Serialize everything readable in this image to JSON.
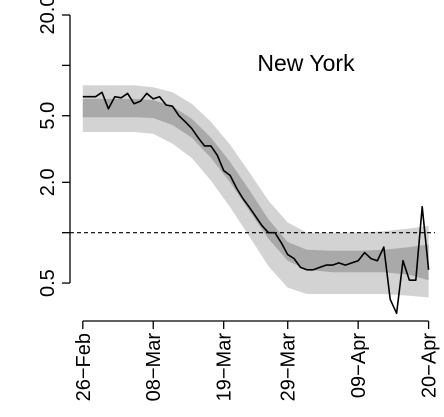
{
  "chart_data": {
    "type": "line",
    "title": "",
    "xlabel": "",
    "ylabel": "",
    "annotation": "New York",
    "y_scale": "log",
    "ylim": [
      0.38,
      20.0
    ],
    "xlim": [
      "2020-02-24",
      "2020-04-21"
    ],
    "y_ticks": [
      {
        "value": 20.0,
        "label": "20.0"
      },
      {
        "value": 5.0,
        "label": "5.0"
      },
      {
        "value": 2.0,
        "label": "2.0"
      },
      {
        "value": 0.5,
        "label": "0.5"
      }
    ],
    "y_minor_ticks": [
      10.0,
      1.0
    ],
    "x_ticks": [
      {
        "date": "2020-02-26",
        "label": "26−Feb"
      },
      {
        "date": "2020-03-08",
        "label": "08−Mar"
      },
      {
        "date": "2020-03-19",
        "label": "19−Mar"
      },
      {
        "date": "2020-03-29",
        "label": "29−Mar"
      },
      {
        "date": "2020-04-09",
        "label": "09−Apr"
      },
      {
        "date": "2020-04-20",
        "label": "20−Apr"
      }
    ],
    "reference_line": {
      "y": 1.0,
      "style": "dashed"
    },
    "grid": false,
    "colors": {
      "outer_band": "#d3d3d3",
      "inner_band": "#a9a9a9",
      "line": "#000000"
    },
    "band": {
      "x": [
        "2020-02-26",
        "2020-03-01",
        "2020-03-05",
        "2020-03-08",
        "2020-03-11",
        "2020-03-14",
        "2020-03-17",
        "2020-03-20",
        "2020-03-23",
        "2020-03-26",
        "2020-03-29",
        "2020-04-01",
        "2020-04-05",
        "2020-04-09",
        "2020-04-13",
        "2020-04-17",
        "2020-04-20"
      ],
      "inner_lower": [
        4.9,
        4.9,
        4.9,
        4.85,
        4.4,
        3.7,
        2.8,
        2.0,
        1.35,
        0.92,
        0.68,
        0.6,
        0.58,
        0.58,
        0.58,
        0.56,
        0.52
      ],
      "inner_upper": [
        6.3,
        6.3,
        6.3,
        6.2,
        5.7,
        4.8,
        3.7,
        2.65,
        1.8,
        1.2,
        0.88,
        0.79,
        0.78,
        0.78,
        0.79,
        0.82,
        0.85
      ],
      "outer_lower": [
        4.0,
        4.0,
        4.0,
        3.9,
        3.4,
        2.8,
        2.05,
        1.42,
        0.95,
        0.63,
        0.47,
        0.43,
        0.43,
        0.43,
        0.43,
        0.42,
        0.41
      ],
      "outer_upper": [
        7.6,
        7.6,
        7.6,
        7.4,
        6.9,
        5.9,
        4.6,
        3.35,
        2.3,
        1.55,
        1.15,
        1.0,
        1.0,
        1.0,
        1.02,
        1.06,
        1.1
      ]
    },
    "series": [
      {
        "x": [
          "2020-02-26",
          "2020-02-27",
          "2020-02-28",
          "2020-02-29",
          "2020-03-01",
          "2020-03-02",
          "2020-03-03",
          "2020-03-04",
          "2020-03-05",
          "2020-03-06",
          "2020-03-07",
          "2020-03-08",
          "2020-03-09",
          "2020-03-10",
          "2020-03-11",
          "2020-03-12",
          "2020-03-13",
          "2020-03-14",
          "2020-03-15",
          "2020-03-16",
          "2020-03-17",
          "2020-03-18",
          "2020-03-19",
          "2020-03-20",
          "2020-03-21",
          "2020-03-22",
          "2020-03-23",
          "2020-03-24",
          "2020-03-25",
          "2020-03-26",
          "2020-03-27",
          "2020-03-28",
          "2020-03-29",
          "2020-03-30",
          "2020-03-31",
          "2020-04-01",
          "2020-04-02",
          "2020-04-03",
          "2020-04-04",
          "2020-04-05",
          "2020-04-06",
          "2020-04-07",
          "2020-04-08",
          "2020-04-09",
          "2020-04-10",
          "2020-04-11",
          "2020-04-12",
          "2020-04-13",
          "2020-04-14",
          "2020-04-15",
          "2020-04-16",
          "2020-04-17",
          "2020-04-18",
          "2020-04-19",
          "2020-04-20"
        ],
        "values": [
          6.5,
          6.5,
          6.5,
          6.9,
          5.5,
          6.5,
          6.4,
          6.8,
          5.9,
          6.1,
          6.8,
          6.3,
          6.5,
          5.8,
          5.7,
          5.0,
          4.6,
          4.2,
          3.7,
          3.3,
          3.3,
          2.9,
          2.35,
          2.2,
          1.85,
          1.6,
          1.42,
          1.25,
          1.1,
          1.0,
          1.0,
          0.87,
          0.74,
          0.7,
          0.62,
          0.6,
          0.6,
          0.62,
          0.64,
          0.64,
          0.66,
          0.64,
          0.66,
          0.68,
          0.76,
          0.7,
          0.68,
          0.82,
          0.4,
          0.33,
          0.68,
          0.52,
          0.52,
          1.43,
          0.6
        ]
      }
    ]
  }
}
